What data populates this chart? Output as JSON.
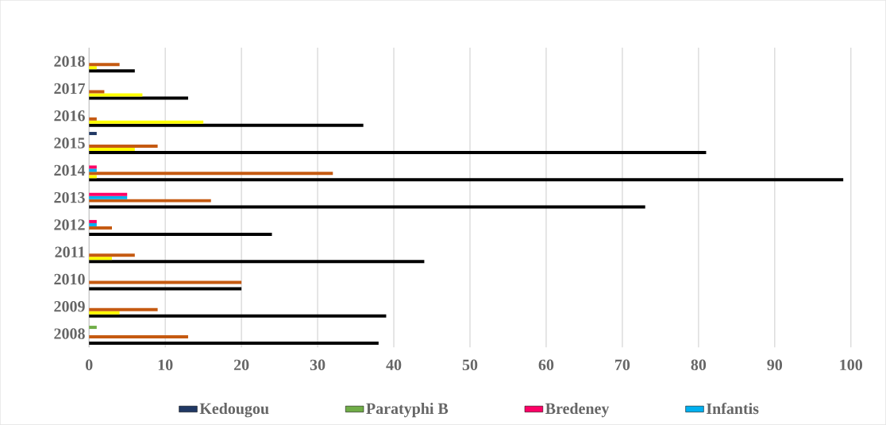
{
  "chart_data": {
    "type": "bar",
    "orientation": "horizontal",
    "categories": [
      "2018",
      "2017",
      "2016",
      "2015",
      "2014",
      "2013",
      "2012",
      "2011",
      "2010",
      "2009",
      "2008"
    ],
    "series": [
      {
        "color": "#000000",
        "values": [
          6,
          13,
          36,
          81,
          99,
          73,
          24,
          44,
          20,
          39,
          38
        ]
      },
      {
        "color": "#ffff00",
        "values": [
          1,
          7,
          15,
          6,
          1,
          0,
          0,
          3,
          0,
          4,
          0
        ]
      },
      {
        "color": "#c55a11",
        "values": [
          4,
          2,
          1,
          9,
          32,
          16,
          3,
          6,
          20,
          9,
          13
        ]
      },
      {
        "name": "Infantis",
        "color": "#00b0f0",
        "values": [
          0,
          0,
          0,
          0,
          1,
          5,
          1,
          0,
          0,
          0,
          0
        ]
      },
      {
        "name": "Bredeney",
        "color": "#ff0066",
        "values": [
          0,
          0,
          0,
          0,
          1,
          5,
          1,
          0,
          0,
          0,
          0
        ]
      },
      {
        "name": "Paratyphi B",
        "color": "#70ad47",
        "values": [
          0,
          0,
          0,
          0,
          0,
          0,
          0,
          0,
          0,
          0,
          1
        ]
      },
      {
        "name": "Kedougou",
        "color": "#203864",
        "values": [
          0,
          0,
          0,
          1,
          0,
          0,
          0,
          0,
          0,
          0,
          0
        ]
      }
    ],
    "xlim": [
      0,
      100
    ],
    "xticks": [
      0,
      10,
      20,
      30,
      40,
      50,
      60,
      70,
      80,
      90,
      100
    ],
    "grid": "x",
    "legend": "bottom"
  }
}
